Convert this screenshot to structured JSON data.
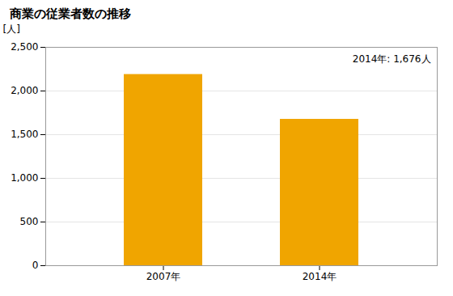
{
  "chart_data": {
    "type": "bar",
    "title": "商業の従業者数の推移",
    "ylabel": "[人]",
    "categories": [
      "2007年",
      "2014年"
    ],
    "values": [
      2189,
      1676
    ],
    "color": "#F0A500",
    "annotation": "2014年: 1,676人",
    "ylim": [
      0,
      2500
    ],
    "yticks": [
      0,
      500,
      {
        "value": 1000,
        "label": "1,000"
      },
      {
        "value": 1500,
        "label": "1,500"
      },
      {
        "value": 2000,
        "label": "2,000"
      },
      {
        "value": 2500,
        "label": "2,500"
      }
    ],
    "grid": true
  }
}
